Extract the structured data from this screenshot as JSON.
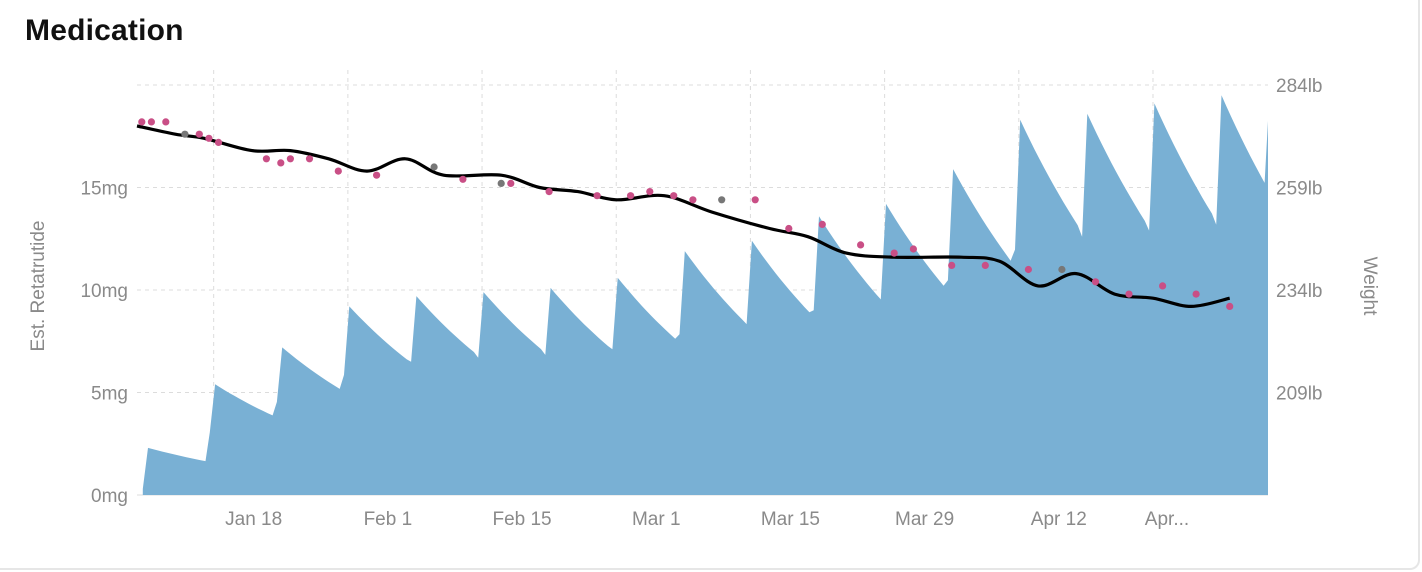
{
  "title": "Medication",
  "chart_data": {
    "type": "area",
    "title": "Medication",
    "x_ticks": [
      "Jan 18",
      "Feb 1",
      "Feb 15",
      "Mar 1",
      "Mar 15",
      "Mar 29",
      "Apr 12",
      "Apr..."
    ],
    "y_left": {
      "label": "Est. Retatrutide",
      "ticks": [
        "0mg",
        "5mg",
        "10mg",
        "15mg"
      ],
      "range": [
        0,
        20
      ]
    },
    "y_right": {
      "label": "Weight",
      "ticks": [
        "209lb",
        "234lb",
        "259lb",
        "284lb"
      ],
      "range": [
        184,
        284
      ]
    },
    "grid": true,
    "colors": {
      "medication_area": "#79b0d4",
      "weight_trend": "#000000",
      "weight_points": "#c94f86",
      "weight_points_missed": "#777777"
    },
    "series": [
      {
        "type": "area",
        "axis": "left",
        "x_day": [
          0,
          7,
          14,
          21,
          28,
          35,
          42,
          49,
          56,
          63,
          70,
          77,
          84,
          91,
          98,
          105,
          112
        ],
        "peaks_mg": [
          2.3,
          5.4,
          7.2,
          9.2,
          9.7,
          9.9,
          10.1,
          10.6,
          11.9,
          12.4,
          13.6,
          14.2,
          15.9,
          18.3,
          18.6,
          19.1,
          19.5
        ]
      },
      {
        "type": "line",
        "axis": "right",
        "x_day": [
          0,
          4,
          7,
          12,
          16,
          20,
          24,
          28,
          32,
          38,
          42,
          46,
          50,
          55,
          60,
          66,
          70,
          74,
          79,
          86,
          90,
          94,
          98,
          102,
          106,
          110,
          114
        ],
        "values_lb": [
          274,
          272,
          271,
          268,
          268,
          266,
          263,
          266,
          262,
          262,
          259,
          258,
          256,
          257,
          253,
          249,
          247,
          243,
          242,
          242,
          241,
          235,
          238,
          233,
          232,
          230,
          232
        ]
      },
      {
        "type": "scatter",
        "axis": "right",
        "x_day": [
          0.5,
          1.5,
          3,
          5,
          6.5,
          7.5,
          8.5,
          13.5,
          15,
          16,
          18,
          21,
          25,
          31,
          34,
          38,
          39,
          43,
          48,
          51.5,
          53.5,
          56,
          58,
          61,
          64.5,
          68,
          71.5,
          75.5,
          79,
          81,
          85,
          88.5,
          93,
          96.5,
          100,
          103.5,
          107,
          110.5,
          114
        ],
        "values_lb": [
          275,
          275,
          275,
          272,
          272,
          271,
          270,
          266,
          265,
          266,
          266,
          263,
          262,
          264,
          261,
          260,
          260,
          258,
          257,
          257,
          258,
          257,
          256,
          256,
          256,
          249,
          250,
          245,
          243,
          244,
          240,
          240,
          239,
          239,
          236,
          233,
          235,
          233,
          230
        ]
      }
    ]
  }
}
